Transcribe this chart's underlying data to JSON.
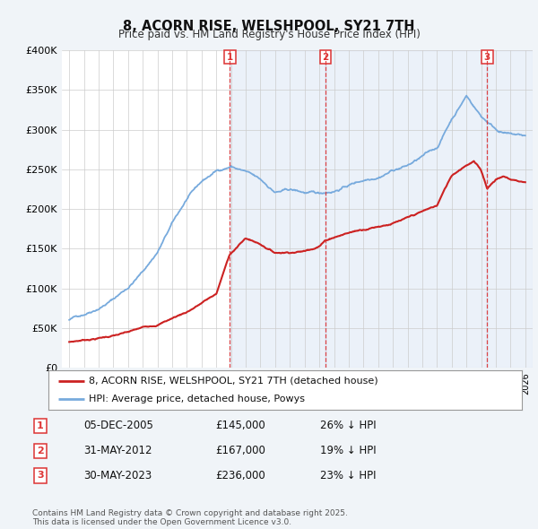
{
  "title": "8, ACORN RISE, WELSHPOOL, SY21 7TH",
  "subtitle": "Price paid vs. HM Land Registry's House Price Index (HPI)",
  "ylim": [
    0,
    400000
  ],
  "yticks": [
    0,
    50000,
    100000,
    150000,
    200000,
    250000,
    300000,
    350000,
    400000
  ],
  "ytick_labels": [
    "£0",
    "£50K",
    "£100K",
    "£150K",
    "£200K",
    "£250K",
    "£300K",
    "£350K",
    "£400K"
  ],
  "xmin": 1994.5,
  "xmax": 2026.5,
  "purchases": [
    {
      "date_num": 2005.92,
      "price": 145000,
      "label": "1",
      "date_str": "05-DEC-2005",
      "pct": "26%"
    },
    {
      "date_num": 2012.41,
      "price": 167000,
      "label": "2",
      "date_str": "31-MAY-2012",
      "pct": "19%"
    },
    {
      "date_num": 2023.41,
      "price": 236000,
      "label": "3",
      "date_str": "30-MAY-2023",
      "pct": "23%"
    }
  ],
  "legend_red": "8, ACORN RISE, WELSHPOOL, SY21 7TH (detached house)",
  "legend_blue": "HPI: Average price, detached house, Powys",
  "footnote": "Contains HM Land Registry data © Crown copyright and database right 2025.\nThis data is licensed under the Open Government Licence v3.0.",
  "bg_color": "#f0f4f8",
  "plot_bg": "#ffffff",
  "grid_color": "#cccccc",
  "blue_color": "#77aadd",
  "red_color": "#cc2222",
  "shade_color": "#c8d8ee",
  "vline_color": "#dd3333"
}
